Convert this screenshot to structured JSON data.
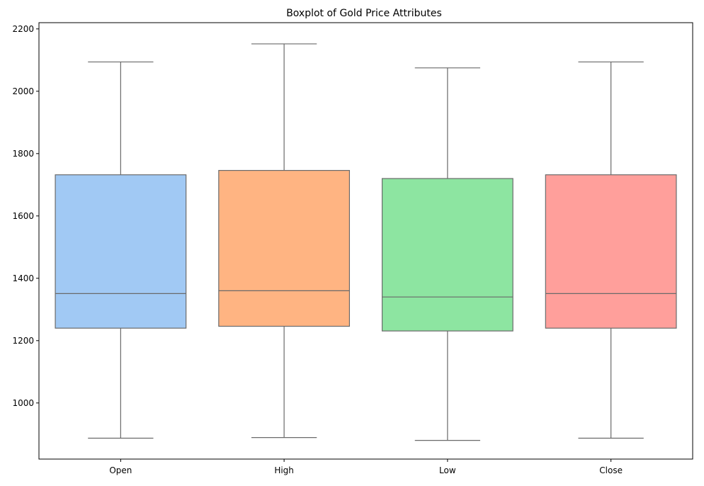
{
  "chart_data": {
    "type": "box",
    "title": "Boxplot of Gold Price Attributes",
    "xlabel": "",
    "ylabel": "",
    "ylim": [
      820,
      2220
    ],
    "yticks": [
      1000,
      1200,
      1400,
      1600,
      1800,
      2000,
      2200
    ],
    "grid": false,
    "categories": [
      "Open",
      "High",
      "Low",
      "Close"
    ],
    "boxes": [
      {
        "name": "Open",
        "whisker_low": 887,
        "q1": 1240,
        "median": 1351,
        "q3": 1732,
        "whisker_high": 2094,
        "color": "#a1c9f4"
      },
      {
        "name": "High",
        "whisker_low": 889,
        "q1": 1246,
        "median": 1360,
        "q3": 1746,
        "whisker_high": 2152,
        "color": "#ffb482"
      },
      {
        "name": "Low",
        "whisker_low": 880,
        "q1": 1231,
        "median": 1340,
        "q3": 1720,
        "whisker_high": 2075,
        "color": "#8de5a1"
      },
      {
        "name": "Close",
        "whisker_low": 887,
        "q1": 1240,
        "median": 1351,
        "q3": 1732,
        "whisker_high": 2094,
        "color": "#ff9f9b"
      }
    ],
    "box_edge_color": "#6a6a6a"
  }
}
